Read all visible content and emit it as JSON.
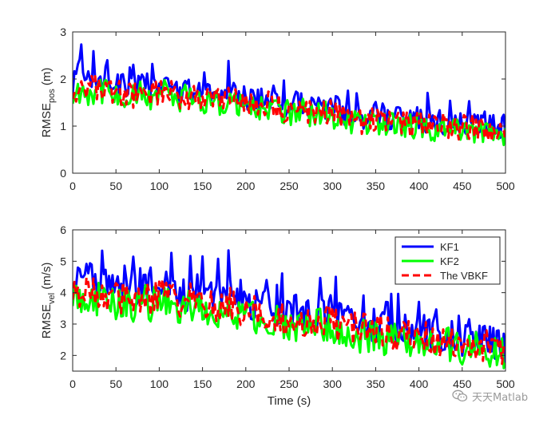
{
  "watermark": {
    "text": "天天Matlab",
    "icon": "wechat-icon"
  },
  "chart_data": [
    {
      "type": "line",
      "title": "",
      "ylabel_main": "RMSE",
      "ylabel_sub": "pos",
      "ylabel_unit": " (m)",
      "xlabel": "",
      "xlim": [
        0,
        500
      ],
      "ylim": [
        0,
        3
      ],
      "xticks": [
        0,
        50,
        100,
        150,
        200,
        250,
        300,
        350,
        400,
        450,
        500
      ],
      "yticks": [
        0,
        1,
        2,
        3
      ],
      "grid": false,
      "series": [
        {
          "color": "#0000ff",
          "style": "solid",
          "x": [
            0,
            10,
            20,
            30,
            40,
            50,
            60,
            70,
            80,
            90,
            100,
            110,
            120,
            130,
            140,
            150,
            160,
            170,
            180,
            190,
            200,
            210,
            220,
            230,
            240,
            250,
            260,
            270,
            280,
            290,
            300,
            310,
            320,
            330,
            340,
            350,
            360,
            370,
            380,
            390,
            400,
            410,
            420,
            430,
            440,
            450,
            460,
            470,
            480,
            490,
            500
          ],
          "values": [
            1.8,
            2.3,
            2.1,
            1.9,
            2.2,
            1.8,
            1.9,
            1.7,
            1.9,
            1.8,
            1.9,
            2.0,
            1.7,
            1.7,
            1.8,
            1.8,
            1.7,
            1.6,
            1.9,
            1.6,
            1.6,
            1.6,
            1.5,
            1.6,
            1.5,
            1.4,
            1.5,
            1.4,
            1.4,
            1.4,
            1.5,
            1.3,
            1.3,
            1.2,
            1.2,
            1.3,
            1.2,
            1.2,
            1.2,
            1.1,
            1.2,
            1.1,
            1.1,
            1.1,
            1.1,
            1.0,
            1.1,
            1.0,
            1.0,
            1.0,
            1.0
          ]
        },
        {
          "color": "#00ff00",
          "style": "solid",
          "x": [
            0,
            10,
            20,
            30,
            40,
            50,
            60,
            70,
            80,
            90,
            100,
            110,
            120,
            130,
            140,
            150,
            160,
            170,
            180,
            190,
            200,
            210,
            220,
            230,
            240,
            250,
            260,
            270,
            280,
            290,
            300,
            310,
            320,
            330,
            340,
            350,
            360,
            370,
            380,
            390,
            400,
            410,
            420,
            430,
            440,
            450,
            460,
            470,
            480,
            490,
            500
          ],
          "values": [
            1.6,
            1.8,
            1.7,
            1.8,
            1.7,
            1.7,
            1.6,
            1.6,
            1.7,
            1.6,
            1.7,
            1.7,
            1.5,
            1.6,
            1.6,
            1.5,
            1.6,
            1.5,
            1.5,
            1.5,
            1.4,
            1.4,
            1.4,
            1.4,
            1.3,
            1.3,
            1.3,
            1.3,
            1.2,
            1.3,
            1.2,
            1.2,
            1.1,
            1.1,
            1.1,
            1.1,
            1.1,
            1.0,
            1.0,
            1.0,
            1.0,
            1.0,
            0.9,
            1.0,
            0.9,
            0.9,
            0.9,
            0.9,
            0.9,
            0.9,
            0.85
          ]
        },
        {
          "color": "#ff0000",
          "style": "dashed",
          "x": [
            0,
            10,
            20,
            30,
            40,
            50,
            60,
            70,
            80,
            90,
            100,
            110,
            120,
            130,
            140,
            150,
            160,
            170,
            180,
            190,
            200,
            210,
            220,
            230,
            240,
            250,
            260,
            270,
            280,
            290,
            300,
            310,
            320,
            330,
            340,
            350,
            360,
            370,
            380,
            390,
            400,
            410,
            420,
            430,
            440,
            450,
            460,
            470,
            480,
            490,
            500
          ],
          "values": [
            1.7,
            1.9,
            1.8,
            1.8,
            1.8,
            1.7,
            1.7,
            1.6,
            1.8,
            1.7,
            1.7,
            1.8,
            1.6,
            1.6,
            1.7,
            1.6,
            1.6,
            1.5,
            1.6,
            1.5,
            1.5,
            1.5,
            1.4,
            1.5,
            1.4,
            1.3,
            1.4,
            1.3,
            1.3,
            1.3,
            1.3,
            1.2,
            1.2,
            1.1,
            1.1,
            1.2,
            1.1,
            1.1,
            1.1,
            1.0,
            1.1,
            1.0,
            1.0,
            1.0,
            1.0,
            0.95,
            1.0,
            0.95,
            0.95,
            0.95,
            0.9
          ]
        }
      ]
    },
    {
      "type": "line",
      "title": "",
      "ylabel_main": "RMSE",
      "ylabel_sub": "vel",
      "ylabel_unit": " (m/s)",
      "xlabel": "Time (s)",
      "xlim": [
        0,
        500
      ],
      "ylim": [
        1.5,
        6
      ],
      "xticks": [
        0,
        50,
        100,
        150,
        200,
        250,
        300,
        350,
        400,
        450,
        500
      ],
      "yticks": [
        2,
        3,
        4,
        5,
        6
      ],
      "grid": false,
      "legend": {
        "position": "top-right",
        "entries": [
          "KF1",
          "KF2",
          "The VBKF"
        ]
      },
      "series": [
        {
          "name": "KF1",
          "color": "#0000ff",
          "style": "solid",
          "x": [
            0,
            10,
            20,
            30,
            40,
            50,
            60,
            70,
            80,
            90,
            100,
            110,
            120,
            130,
            140,
            150,
            160,
            170,
            180,
            190,
            200,
            210,
            220,
            230,
            240,
            250,
            260,
            270,
            280,
            290,
            300,
            310,
            320,
            330,
            340,
            350,
            360,
            370,
            380,
            390,
            400,
            410,
            420,
            430,
            440,
            450,
            460,
            470,
            480,
            490,
            500
          ],
          "values": [
            4.2,
            4.6,
            4.5,
            4.3,
            4.2,
            4.1,
            4.2,
            4.0,
            4.3,
            4.1,
            4.2,
            4.3,
            4.0,
            3.9,
            4.1,
            4.0,
            3.9,
            3.8,
            4.1,
            3.7,
            3.7,
            3.6,
            3.5,
            3.6,
            3.4,
            3.3,
            3.4,
            3.3,
            3.3,
            3.4,
            3.4,
            3.1,
            3.1,
            3.0,
            2.9,
            3.0,
            2.9,
            2.9,
            2.8,
            2.7,
            2.8,
            2.7,
            2.7,
            2.6,
            2.7,
            2.5,
            2.6,
            2.5,
            2.5,
            2.4,
            2.3
          ]
        },
        {
          "name": "KF2",
          "color": "#00ff00",
          "style": "solid",
          "x": [
            0,
            10,
            20,
            30,
            40,
            50,
            60,
            70,
            80,
            90,
            100,
            110,
            120,
            130,
            140,
            150,
            160,
            170,
            180,
            190,
            200,
            210,
            220,
            230,
            240,
            250,
            260,
            270,
            280,
            290,
            300,
            310,
            320,
            330,
            340,
            350,
            360,
            370,
            380,
            390,
            400,
            410,
            420,
            430,
            440,
            450,
            460,
            470,
            480,
            490,
            500
          ],
          "values": [
            3.8,
            3.9,
            3.8,
            3.8,
            3.7,
            3.6,
            3.7,
            3.5,
            3.8,
            3.6,
            3.7,
            3.7,
            3.5,
            3.5,
            3.6,
            3.4,
            3.5,
            3.3,
            3.5,
            3.3,
            3.3,
            3.2,
            3.1,
            3.2,
            3.0,
            2.9,
            3.0,
            2.9,
            2.9,
            3.0,
            2.9,
            2.7,
            2.7,
            2.6,
            2.6,
            2.7,
            2.5,
            2.5,
            2.5,
            2.4,
            2.5,
            2.4,
            2.3,
            2.3,
            2.4,
            2.2,
            2.3,
            2.2,
            2.2,
            2.1,
            2.0
          ]
        },
        {
          "name": "The VBKF",
          "color": "#ff0000",
          "style": "dashed",
          "x": [
            0,
            10,
            20,
            30,
            40,
            50,
            60,
            70,
            80,
            90,
            100,
            110,
            120,
            130,
            140,
            150,
            160,
            170,
            180,
            190,
            200,
            210,
            220,
            230,
            240,
            250,
            260,
            270,
            280,
            290,
            300,
            310,
            320,
            330,
            340,
            350,
            360,
            370,
            380,
            390,
            400,
            410,
            420,
            430,
            440,
            450,
            460,
            470,
            480,
            490,
            500
          ],
          "values": [
            4.0,
            4.1,
            4.0,
            4.0,
            3.9,
            3.8,
            3.9,
            3.7,
            4.0,
            3.8,
            3.9,
            3.9,
            3.7,
            3.7,
            3.8,
            3.6,
            3.7,
            3.5,
            3.7,
            3.5,
            3.5,
            3.4,
            3.3,
            3.4,
            3.2,
            3.1,
            3.2,
            3.1,
            3.1,
            3.1,
            3.1,
            2.9,
            2.9,
            2.8,
            2.8,
            2.8,
            2.7,
            2.7,
            2.6,
            2.6,
            2.6,
            2.5,
            2.5,
            2.5,
            2.5,
            2.4,
            2.4,
            2.3,
            2.3,
            2.3,
            2.2
          ]
        }
      ]
    }
  ]
}
